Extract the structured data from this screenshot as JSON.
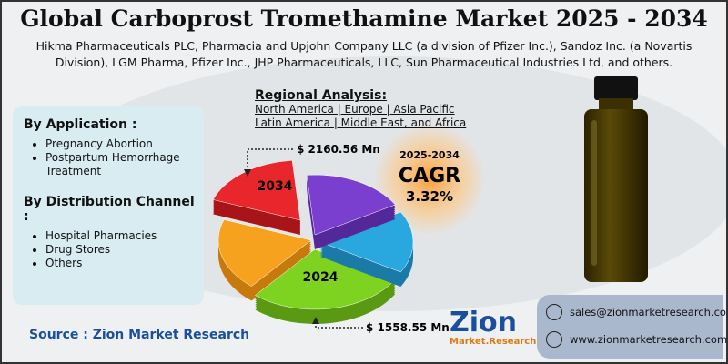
{
  "title": "Global Carboprost Tromethamine Market 2025 - 2034",
  "subtitle": "Hikma Pharmaceuticals PLC, Pharmacia and Upjohn Company LLC (a division of Pfizer Inc.), Sandoz Inc. (a Novartis Division), LGM Pharma, Pfizer Inc., JHP Pharmaceuticals, LLC, Sun Pharmaceutical Industries Ltd, and others.",
  "left_panel": {
    "sections": [
      {
        "heading": "By Application  :",
        "items": [
          "Pregnancy Abortion",
          "Postpartum Hemorrhage Treatment"
        ]
      },
      {
        "heading": "By Distribution Channel :",
        "items": [
          "Hospital Pharmacies",
          "Drug Stores",
          "Others"
        ]
      }
    ]
  },
  "regional": {
    "heading": "Regional Analysis:",
    "lines": [
      "North America | Europe | Asia Pacific",
      "Latin America | Middle East, and Africa"
    ]
  },
  "pie": {
    "label_2034": "2034",
    "value_2034": "$ 2160.56 Mn",
    "label_2024": "2024",
    "value_2024": "$ 1558.55 Mn"
  },
  "cagr": {
    "period": "2025-2034",
    "label": "CAGR",
    "value": "3.32%"
  },
  "source": "Source : Zion Market Research",
  "logo": {
    "name": "Zion",
    "tagline": "Market.Research"
  },
  "contact": {
    "email": "sales@zionmarketresearch.com",
    "website": "www.zionmarketresearch.com"
  }
}
